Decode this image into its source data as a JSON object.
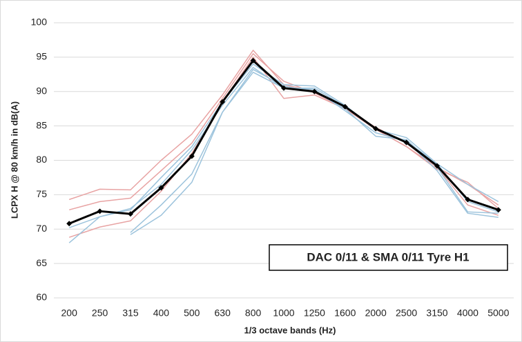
{
  "chart_data": {
    "type": "line",
    "x_label": "1/3 octave bands (Hz)",
    "y_label": "LCPX H @ 80 km/h in dB(A)",
    "annotation": "DAC 0/11 & SMA 0/11 Tyre H1",
    "categories": [
      "200",
      "250",
      "315",
      "400",
      "500",
      "630",
      "800",
      "1000",
      "1250",
      "1600",
      "2000",
      "2500",
      "3150",
      "4000",
      "5000"
    ],
    "ylim": [
      60,
      100
    ],
    "yticks": [
      60,
      65,
      70,
      75,
      80,
      85,
      90,
      95,
      100
    ],
    "grid": true,
    "series": [
      {
        "color": "#e8a3a3",
        "values": [
          74.3,
          75.8,
          75.7,
          80,
          83.8,
          89.5,
          96,
          91,
          90,
          87.8,
          84.5,
          82,
          79,
          76.5,
          73.5
        ]
      },
      {
        "color": "#e8a3a3",
        "values": [
          72.8,
          74,
          74.5,
          78.5,
          82.5,
          89,
          95.5,
          91.5,
          89.8,
          87.5,
          84.5,
          82,
          78.7,
          76.8,
          73
        ]
      },
      {
        "color": "#e8a3a3",
        "values": [
          68.8,
          70.3,
          71.2,
          75.5,
          81,
          88.5,
          95,
          89,
          89.5,
          87.5,
          84.8,
          82.5,
          79,
          73.5,
          72
        ]
      },
      {
        "color": "#9cc3dc",
        "values": [
          68,
          71.8,
          72.8,
          77.5,
          82,
          88.5,
          94,
          91,
          90.8,
          88,
          84.5,
          83.3,
          79.5,
          74,
          72.5
        ]
      },
      {
        "color": "#9cc3dc",
        "values": [
          70.2,
          71.8,
          73,
          76.5,
          81.5,
          88,
          93.5,
          90.5,
          90.5,
          87.8,
          84.5,
          82.8,
          79.5,
          76.5,
          74
        ]
      },
      {
        "color": "#9cc3dc",
        "values": [
          null,
          null,
          69.5,
          73.5,
          78,
          87,
          93.2,
          90.8,
          90,
          87.5,
          83.5,
          83,
          79,
          72.5,
          72.3
        ]
      },
      {
        "color": "#9cc3dc",
        "values": [
          null,
          null,
          69.2,
          72,
          76.8,
          87,
          92.8,
          90.5,
          90.3,
          87.2,
          84,
          82.8,
          78.5,
          72.3,
          71.7
        ]
      },
      {
        "color": "#000000",
        "values": [
          70.8,
          72.6,
          72.2,
          76,
          80.6,
          88.5,
          94.5,
          90.5,
          90,
          87.8,
          84.6,
          82.6,
          79.2,
          74.3,
          72.8
        ],
        "marker": "diamond"
      }
    ]
  }
}
